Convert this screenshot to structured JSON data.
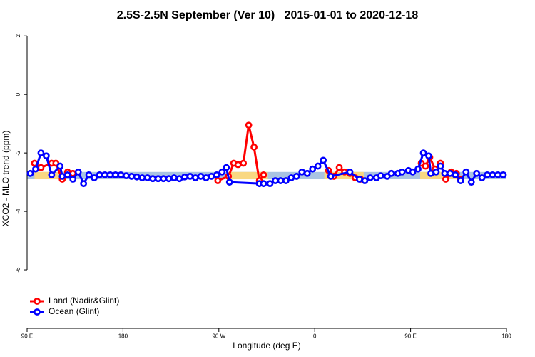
{
  "chart_data": {
    "type": "line",
    "title": "2.5S-2.5N September (Ver 10)   2015-01-01 to 2020-12-18",
    "x_label": "Longitude (deg E)",
    "y_label": "XCO2 - MLO trend (ppm)",
    "xlim": [
      90,
      540
    ],
    "ylim": [
      -8,
      2.25
    ],
    "xticks": [
      {
        "value": 90,
        "label": "90 E"
      },
      180,
      {
        "value": 270,
        "label": "90 W"
      },
      {
        "value": 360,
        "label": "0"
      },
      {
        "value": 450,
        "label": "90 E"
      },
      {
        "value": 540,
        "label": "180"
      }
    ],
    "yticks": [
      2,
      0,
      -2,
      -4,
      -6
    ],
    "legend": "bottom-left",
    "band": {
      "ylim": [
        -2.9,
        -2.65
      ],
      "color": "#a9c3e2",
      "land_color": "#f9d882",
      "land_x": [
        [
          97,
          122
        ],
        [
          279,
          316
        ],
        [
          369,
          406
        ],
        [
          459,
          494
        ]
      ]
    },
    "series": [
      {
        "name": "Land (Nadir&Glint)",
        "color": "#ff0000",
        "x": [
          97,
          103,
          113,
          117,
          123,
          128,
          133,
          null,
          269,
          279,
          284,
          288,
          293,
          298,
          303,
          308,
          312,
          null,
          373,
          378,
          383,
          388,
          393,
          398,
          403,
          null,
          460,
          464,
          468,
          473,
          478,
          483,
          488,
          493,
          497
        ],
        "values": [
          -2.35,
          -2.5,
          -2.35,
          -2.35,
          -2.9,
          -2.65,
          -2.7,
          null,
          -2.95,
          -2.8,
          -2.35,
          -2.4,
          -2.35,
          -1.05,
          -1.8,
          -2.95,
          -2.75,
          null,
          -2.6,
          -2.8,
          -2.5,
          -2.65,
          -2.7,
          -2.85,
          -2.9,
          null,
          -2.35,
          -2.45,
          -2.15,
          -2.55,
          -2.35,
          -2.9,
          -2.65,
          -2.7,
          -2.9
        ]
      },
      {
        "name": "Ocean (Glint)",
        "color": "#0000ff",
        "x": [
          93,
          98,
          103,
          108,
          113,
          121,
          123,
          128,
          133,
          138,
          143,
          148,
          153,
          158,
          163,
          168,
          173,
          178,
          183,
          188,
          193,
          198,
          203,
          208,
          213,
          218,
          223,
          228,
          233,
          238,
          243,
          248,
          253,
          258,
          263,
          268,
          273,
          277,
          280,
          308,
          312,
          318,
          323,
          328,
          333,
          338,
          343,
          348,
          353,
          358,
          363,
          368,
          375,
          393,
          402,
          407,
          412,
          418,
          422,
          428,
          432,
          438,
          442,
          448,
          452,
          457,
          462,
          467,
          469,
          474,
          478,
          482,
          487,
          492,
          497,
          502,
          507,
          512,
          517,
          522,
          527,
          532,
          537
        ],
        "values": [
          -2.7,
          -2.55,
          -2.0,
          -2.1,
          -2.75,
          -2.45,
          -2.8,
          -2.75,
          -2.9,
          -2.65,
          -3.05,
          -2.75,
          -2.85,
          -2.75,
          -2.75,
          -2.75,
          -2.75,
          -2.75,
          -2.78,
          -2.8,
          -2.82,
          -2.85,
          -2.85,
          -2.88,
          -2.88,
          -2.88,
          -2.88,
          -2.85,
          -2.88,
          -2.82,
          -2.8,
          -2.85,
          -2.8,
          -2.85,
          -2.8,
          -2.75,
          -2.65,
          -2.5,
          -3.0,
          -3.05,
          -3.05,
          -3.05,
          -2.95,
          -2.95,
          -2.95,
          -2.85,
          -2.8,
          -2.65,
          -2.7,
          -2.55,
          -2.45,
          -2.25,
          -2.8,
          -2.65,
          -2.9,
          -2.95,
          -2.85,
          -2.85,
          -2.78,
          -2.8,
          -2.7,
          -2.7,
          -2.65,
          -2.6,
          -2.65,
          -2.55,
          -2.0,
          -2.1,
          -2.7,
          -2.65,
          -2.45,
          -2.7,
          -2.7,
          -2.75,
          -2.95,
          -2.65,
          -3.0,
          -2.7,
          -2.85,
          -2.75,
          -2.75,
          -2.75,
          -2.75
        ]
      }
    ]
  }
}
